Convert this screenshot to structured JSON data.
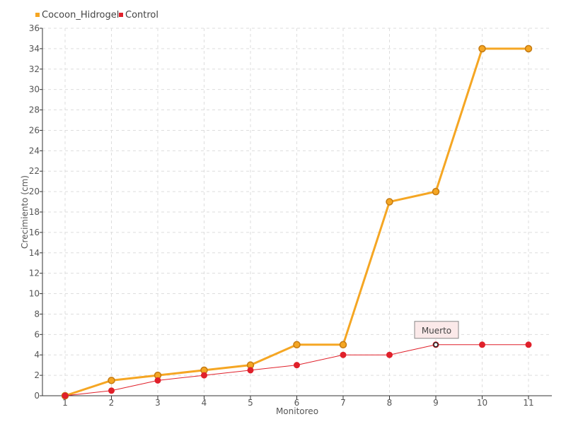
{
  "chart_data": {
    "type": "line",
    "title": "",
    "xlabel": "Monitoreo",
    "ylabel": "Crecimiento (cm)",
    "categories": [
      "1",
      "2",
      "3",
      "4",
      "5",
      "6",
      "7",
      "8",
      "9",
      "10",
      "11"
    ],
    "ylim": [
      0,
      36
    ],
    "yticks": [
      0,
      2,
      4,
      6,
      8,
      10,
      12,
      14,
      16,
      18,
      20,
      22,
      24,
      26,
      28,
      30,
      32,
      34,
      36
    ],
    "grid": true,
    "legend_position": "top-left",
    "series": [
      {
        "name": "Cocoon_Hidrogel",
        "color": "#f5a623",
        "marker_stroke": "#c47a12",
        "values": [
          0,
          1.5,
          2,
          2.5,
          3,
          5,
          5,
          19,
          20,
          34,
          34
        ]
      },
      {
        "name": "Control",
        "color": "#e0202a",
        "marker_stroke": "#e0202a",
        "values": [
          0,
          0.5,
          1.5,
          2,
          2.5,
          3,
          4,
          4,
          5,
          5,
          5
        ]
      }
    ],
    "annotations": [
      {
        "text": "Muerto",
        "series": "Control",
        "category": "9",
        "value": 5
      }
    ]
  }
}
